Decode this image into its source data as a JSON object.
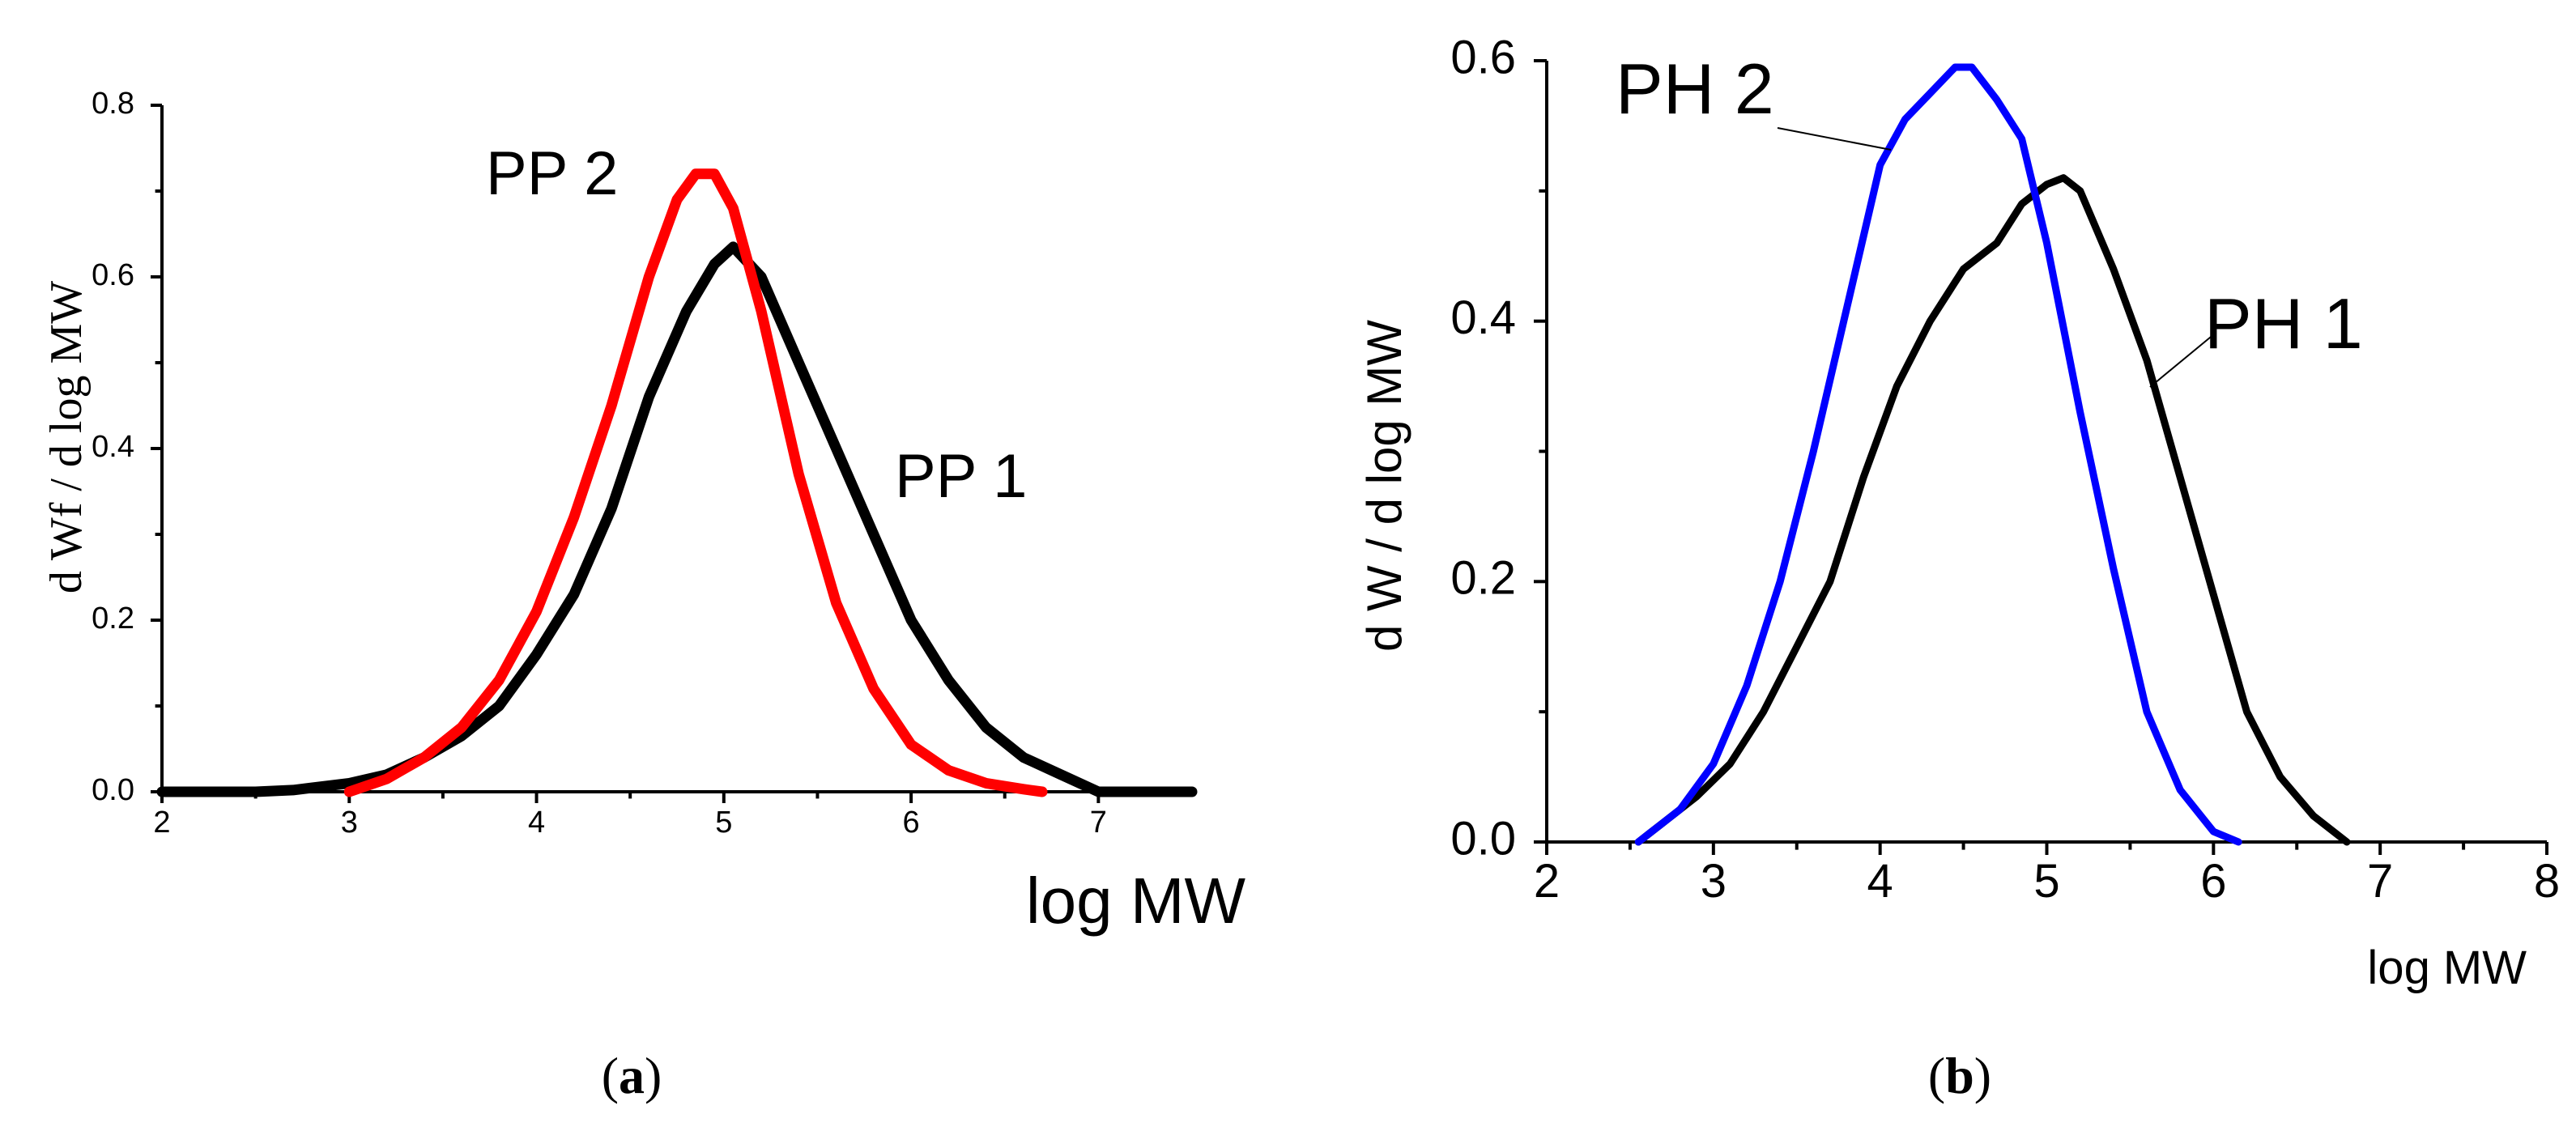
{
  "chart_data": [
    {
      "panel_label": "a",
      "type": "line",
      "xlabel": "log MW",
      "ylabel": "d Wf / d log MW",
      "xlim": [
        2,
        7.5
      ],
      "ylim": [
        0,
        0.8
      ],
      "xticks": [
        "2",
        "3",
        "4",
        "5",
        "6",
        "7"
      ],
      "yticks": [
        "0.0",
        "0.2",
        "0.4",
        "0.6",
        "0.8"
      ],
      "series": [
        {
          "name": "PP 1",
          "color": "#000000",
          "x": [
            2.0,
            2.5,
            2.7,
            3.0,
            3.2,
            3.4,
            3.6,
            3.8,
            4.0,
            4.2,
            4.4,
            4.6,
            4.8,
            4.95,
            5.05,
            5.2,
            5.4,
            5.6,
            5.8,
            6.0,
            6.2,
            6.4,
            6.6,
            6.8,
            7.0,
            7.5
          ],
          "y": [
            0.0,
            0.0,
            0.002,
            0.01,
            0.02,
            0.04,
            0.065,
            0.1,
            0.16,
            0.23,
            0.33,
            0.46,
            0.56,
            0.615,
            0.635,
            0.6,
            0.5,
            0.4,
            0.3,
            0.2,
            0.13,
            0.075,
            0.04,
            0.02,
            0.0,
            0.0
          ]
        },
        {
          "name": "PP 2",
          "color": "#ff0000",
          "x": [
            3.0,
            3.2,
            3.4,
            3.6,
            3.8,
            4.0,
            4.2,
            4.4,
            4.6,
            4.75,
            4.85,
            4.95,
            5.05,
            5.2,
            5.4,
            5.6,
            5.8,
            6.0,
            6.2,
            6.4,
            6.6,
            6.7
          ],
          "y": [
            0.0,
            0.015,
            0.04,
            0.075,
            0.13,
            0.21,
            0.32,
            0.45,
            0.6,
            0.69,
            0.72,
            0.72,
            0.68,
            0.56,
            0.37,
            0.22,
            0.12,
            0.055,
            0.025,
            0.01,
            0.003,
            0.0
          ]
        }
      ],
      "annotations": [
        "PP 2",
        "PP 1"
      ]
    },
    {
      "panel_label": "b",
      "type": "line",
      "xlabel": "log MW",
      "ylabel": "d W / d log MW",
      "xlim": [
        2,
        8
      ],
      "ylim": [
        0,
        0.6
      ],
      "xticks": [
        "2",
        "3",
        "4",
        "5",
        "6",
        "7",
        "8"
      ],
      "yticks": [
        "0.0",
        "0.2",
        "0.4",
        "0.6"
      ],
      "series": [
        {
          "name": "PH 1",
          "color": "#000000",
          "x": [
            2.55,
            2.7,
            2.9,
            3.1,
            3.3,
            3.5,
            3.7,
            3.9,
            4.1,
            4.3,
            4.5,
            4.7,
            4.85,
            5.0,
            5.1,
            5.2,
            5.4,
            5.6,
            5.8,
            6.0,
            6.2,
            6.4,
            6.6,
            6.8
          ],
          "y": [
            0.0,
            0.015,
            0.035,
            0.06,
            0.1,
            0.15,
            0.2,
            0.28,
            0.35,
            0.4,
            0.44,
            0.46,
            0.49,
            0.505,
            0.51,
            0.5,
            0.44,
            0.37,
            0.28,
            0.19,
            0.1,
            0.05,
            0.02,
            0.0
          ]
        },
        {
          "name": "PH 2",
          "color": "#0000ff",
          "x": [
            2.55,
            2.8,
            3.0,
            3.2,
            3.4,
            3.6,
            3.8,
            4.0,
            4.15,
            4.3,
            4.45,
            4.55,
            4.7,
            4.85,
            5.0,
            5.2,
            5.4,
            5.6,
            5.8,
            6.0,
            6.15
          ],
          "y": [
            0.0,
            0.025,
            0.06,
            0.12,
            0.2,
            0.3,
            0.41,
            0.52,
            0.555,
            0.575,
            0.595,
            0.595,
            0.57,
            0.54,
            0.46,
            0.33,
            0.21,
            0.1,
            0.04,
            0.008,
            0.0
          ]
        }
      ],
      "annotations": [
        "PH 2",
        "PH 1"
      ]
    }
  ]
}
